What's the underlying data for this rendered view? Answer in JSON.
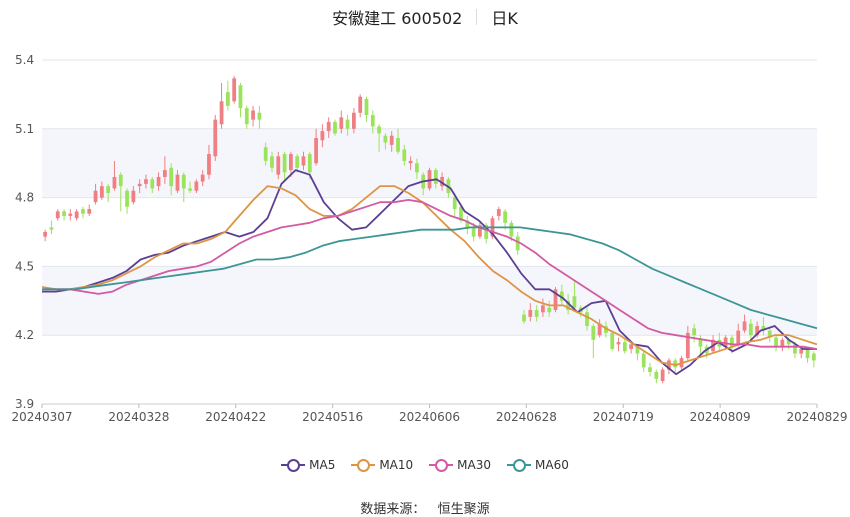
{
  "header": {
    "title": "安徽建工 600502",
    "period": "日K"
  },
  "source": {
    "label": "数据来源：",
    "name": "恒生聚源"
  },
  "colors": {
    "up": "#f07f83",
    "down": "#9be35c",
    "ma5": "#5b3f94",
    "ma10": "#dd9545",
    "ma30": "#d35aa3",
    "ma60": "#3d9696"
  },
  "chart_data": {
    "type": "candlestick",
    "y_ticks": [
      "5.4",
      "5.1",
      "4.8",
      "4.5",
      "4.2",
      "3.9"
    ],
    "ylim": [
      3.9,
      5.4
    ],
    "x_ticks": [
      "20240307",
      "20240328",
      "20240422",
      "20240516",
      "20240606",
      "20240628",
      "20240719",
      "20240809",
      "20240829"
    ],
    "grid": true,
    "legend_position": "bottom",
    "series": [
      {
        "name": "MA5",
        "key": "ma5",
        "values": [
          4.39,
          4.39,
          4.4,
          4.41,
          4.43,
          4.45,
          4.48,
          4.53,
          4.55,
          4.56,
          4.59,
          4.61,
          4.63,
          4.65,
          4.63,
          4.65,
          4.71,
          4.86,
          4.92,
          4.9,
          4.78,
          4.71,
          4.66,
          4.67,
          4.73,
          4.79,
          4.85,
          4.87,
          4.88,
          4.84,
          4.74,
          4.7,
          4.64,
          4.56,
          4.47,
          4.4,
          4.4,
          4.36,
          4.3,
          4.34,
          4.35,
          4.22,
          4.16,
          4.15,
          4.08,
          4.03,
          4.07,
          4.13,
          4.17,
          4.13,
          4.16,
          4.22,
          4.24,
          4.18,
          4.14,
          4.14
        ]
      },
      {
        "name": "MA10",
        "key": "ma10",
        "values": [
          4.41,
          4.4,
          4.4,
          4.41,
          4.42,
          4.44,
          4.47,
          4.5,
          4.54,
          4.57,
          4.6,
          4.6,
          4.62,
          4.65,
          4.72,
          4.79,
          4.85,
          4.84,
          4.81,
          4.75,
          4.72,
          4.72,
          4.75,
          4.8,
          4.85,
          4.85,
          4.82,
          4.78,
          4.72,
          4.66,
          4.61,
          4.54,
          4.48,
          4.44,
          4.39,
          4.35,
          4.33,
          4.33,
          4.3,
          4.27,
          4.23,
          4.2,
          4.16,
          4.12,
          4.08,
          4.07,
          4.09,
          4.11,
          4.13,
          4.15,
          4.17,
          4.18,
          4.2,
          4.2,
          4.18,
          4.16
        ]
      },
      {
        "name": "MA30",
        "key": "ma30",
        "values": [
          4.4,
          4.4,
          4.4,
          4.39,
          4.38,
          4.39,
          4.42,
          4.44,
          4.46,
          4.48,
          4.49,
          4.5,
          4.52,
          4.56,
          4.6,
          4.63,
          4.65,
          4.67,
          4.68,
          4.69,
          4.71,
          4.72,
          4.74,
          4.76,
          4.78,
          4.78,
          4.79,
          4.78,
          4.75,
          4.72,
          4.7,
          4.67,
          4.65,
          4.63,
          4.6,
          4.56,
          4.51,
          4.47,
          4.43,
          4.39,
          4.35,
          4.31,
          4.27,
          4.23,
          4.21,
          4.2,
          4.19,
          4.18,
          4.17,
          4.16,
          4.16,
          4.15,
          4.15,
          4.15,
          4.15,
          4.14
        ]
      },
      {
        "name": "MA60",
        "key": "ma60",
        "values": [
          4.4,
          4.4,
          4.4,
          4.41,
          4.42,
          4.43,
          4.44,
          4.45,
          4.46,
          4.47,
          4.48,
          4.49,
          4.51,
          4.53,
          4.53,
          4.54,
          4.56,
          4.59,
          4.61,
          4.62,
          4.63,
          4.64,
          4.65,
          4.66,
          4.66,
          4.66,
          4.67,
          4.67,
          4.67,
          4.67,
          4.66,
          4.65,
          4.64,
          4.62,
          4.6,
          4.57,
          4.53,
          4.49,
          4.46,
          4.43,
          4.4,
          4.37,
          4.34,
          4.31,
          4.29,
          4.27,
          4.25,
          4.23
        ]
      }
    ],
    "candles": [
      [
        4.63,
        4.65,
        4.66,
        4.61
      ],
      [
        4.67,
        4.66,
        4.7,
        4.64
      ],
      [
        4.71,
        4.74,
        4.75,
        4.7
      ],
      [
        4.74,
        4.72,
        4.75,
        4.7
      ],
      [
        4.72,
        4.73,
        4.75,
        4.7
      ],
      [
        4.71,
        4.74,
        4.75,
        4.7
      ],
      [
        4.75,
        4.73,
        4.76,
        4.71
      ],
      [
        4.73,
        4.75,
        4.77,
        4.72
      ],
      [
        4.78,
        4.83,
        4.86,
        4.77
      ],
      [
        4.8,
        4.85,
        4.87,
        4.79
      ],
      [
        4.85,
        4.82,
        4.86,
        4.78
      ],
      [
        4.84,
        4.89,
        4.96,
        4.83
      ],
      [
        4.9,
        4.85,
        4.91,
        4.74
      ],
      [
        4.83,
        4.76,
        4.84,
        4.73
      ],
      [
        4.78,
        4.83,
        4.85,
        4.77
      ],
      [
        4.85,
        4.86,
        4.88,
        4.82
      ],
      [
        4.86,
        4.88,
        4.9,
        4.84
      ],
      [
        4.88,
        4.84,
        4.89,
        4.82
      ],
      [
        4.85,
        4.89,
        4.91,
        4.83
      ],
      [
        4.89,
        4.92,
        4.98,
        4.86
      ],
      [
        4.93,
        4.85,
        4.95,
        4.81
      ],
      [
        4.83,
        4.9,
        4.92,
        4.82
      ],
      [
        4.9,
        4.84,
        4.91,
        4.78
      ],
      [
        4.84,
        4.83,
        4.87,
        4.82
      ],
      [
        4.83,
        4.87,
        4.88,
        4.82
      ],
      [
        4.87,
        4.9,
        4.92,
        4.85
      ],
      [
        4.9,
        4.99,
        5.03,
        4.88
      ],
      [
        4.98,
        5.14,
        5.16,
        4.96
      ],
      [
        5.12,
        5.22,
        5.3,
        5.1
      ],
      [
        5.26,
        5.2,
        5.31,
        5.18
      ],
      [
        5.22,
        5.32,
        5.33,
        5.21
      ],
      [
        5.29,
        5.19,
        5.3,
        5.15
      ],
      [
        5.19,
        5.12,
        5.2,
        5.1
      ],
      [
        5.14,
        5.18,
        5.2,
        5.11
      ],
      [
        5.17,
        5.14,
        5.2,
        5.1
      ],
      [
        5.02,
        4.96,
        5.04,
        4.94
      ],
      [
        4.98,
        4.93,
        5.0,
        4.91
      ],
      [
        4.9,
        4.98,
        5.0,
        4.88
      ],
      [
        4.99,
        4.91,
        5.0,
        4.87
      ],
      [
        4.92,
        4.99,
        5.0,
        4.89
      ],
      [
        4.98,
        4.93,
        4.99,
        4.91
      ],
      [
        4.94,
        4.98,
        5.0,
        4.92
      ],
      [
        4.99,
        4.91,
        5.0,
        4.88
      ],
      [
        4.95,
        5.06,
        5.1,
        4.94
      ],
      [
        5.05,
        5.09,
        5.12,
        5.02
      ],
      [
        5.09,
        5.13,
        5.15,
        5.06
      ],
      [
        5.13,
        5.08,
        5.14,
        5.07
      ],
      [
        5.1,
        5.15,
        5.18,
        5.08
      ],
      [
        5.14,
        5.1,
        5.16,
        5.07
      ],
      [
        5.1,
        5.17,
        5.19,
        5.08
      ],
      [
        5.17,
        5.24,
        5.25,
        5.15
      ],
      [
        5.23,
        5.16,
        5.24,
        5.13
      ],
      [
        5.16,
        5.11,
        5.18,
        5.08
      ],
      [
        5.11,
        5.08,
        5.12,
        5.0
      ],
      [
        5.07,
        5.04,
        5.08,
        5.01
      ],
      [
        5.03,
        5.07,
        5.09,
        5.0
      ],
      [
        5.06,
        5.0,
        5.1,
        4.99
      ],
      [
        5.01,
        4.96,
        5.03,
        4.94
      ],
      [
        4.95,
        4.96,
        4.98,
        4.92
      ],
      [
        4.95,
        4.91,
        4.97,
        4.88
      ],
      [
        4.9,
        4.84,
        4.91,
        4.81
      ],
      [
        4.84,
        4.92,
        4.93,
        4.83
      ],
      [
        4.92,
        4.86,
        4.93,
        4.84
      ],
      [
        4.85,
        4.89,
        4.91,
        4.83
      ],
      [
        4.88,
        4.82,
        4.89,
        4.8
      ],
      [
        4.8,
        4.75,
        4.82,
        4.72
      ],
      [
        4.76,
        4.7,
        4.77,
        4.69
      ],
      [
        4.7,
        4.67,
        4.72,
        4.64
      ],
      [
        4.67,
        4.63,
        4.69,
        4.61
      ],
      [
        4.63,
        4.68,
        4.7,
        4.62
      ],
      [
        4.68,
        4.62,
        4.69,
        4.6
      ],
      [
        4.63,
        4.71,
        4.72,
        4.62
      ],
      [
        4.72,
        4.75,
        4.76,
        4.7
      ],
      [
        4.74,
        4.69,
        4.75,
        4.66
      ],
      [
        4.69,
        4.63,
        4.7,
        4.61
      ],
      [
        4.63,
        4.57,
        4.65,
        4.55
      ],
      [
        4.29,
        4.26,
        4.31,
        4.25
      ],
      [
        4.28,
        4.31,
        4.34,
        4.26
      ],
      [
        4.31,
        4.28,
        4.33,
        4.26
      ],
      [
        4.3,
        4.33,
        4.36,
        4.28
      ],
      [
        4.32,
        4.3,
        4.35,
        4.28
      ],
      [
        4.31,
        4.4,
        4.41,
        4.3
      ],
      [
        4.39,
        4.35,
        4.42,
        4.33
      ],
      [
        4.35,
        4.31,
        4.38,
        4.29
      ],
      [
        4.37,
        4.32,
        4.44,
        4.3
      ],
      [
        4.32,
        4.3,
        4.33,
        4.28
      ],
      [
        4.3,
        4.24,
        4.32,
        4.22
      ],
      [
        4.24,
        4.18,
        4.25,
        4.1
      ],
      [
        4.2,
        4.25,
        4.27,
        4.19
      ],
      [
        4.24,
        4.21,
        4.26,
        4.19
      ],
      [
        4.21,
        4.14,
        4.22,
        4.13
      ],
      [
        4.16,
        4.17,
        4.19,
        4.13
      ],
      [
        4.17,
        4.13,
        4.18,
        4.12
      ],
      [
        4.14,
        4.16,
        4.17,
        4.12
      ],
      [
        4.15,
        4.12,
        4.16,
        4.09
      ],
      [
        4.12,
        4.06,
        4.13,
        4.04
      ],
      [
        4.06,
        4.04,
        4.08,
        4.02
      ],
      [
        4.04,
        4.01,
        4.05,
        3.99
      ],
      [
        4.0,
        4.05,
        4.06,
        3.99
      ],
      [
        4.05,
        4.09,
        4.1,
        4.03
      ],
      [
        4.09,
        4.06,
        4.1,
        4.04
      ],
      [
        4.06,
        4.1,
        4.11,
        4.05
      ],
      [
        4.1,
        4.21,
        4.24,
        4.09
      ],
      [
        4.23,
        4.2,
        4.25,
        4.17
      ],
      [
        4.18,
        4.15,
        4.2,
        4.12
      ],
      [
        4.15,
        4.12,
        4.16,
        4.1
      ],
      [
        4.13,
        4.18,
        4.2,
        4.12
      ],
      [
        4.18,
        4.15,
        4.21,
        4.13
      ],
      [
        4.15,
        4.19,
        4.2,
        4.14
      ],
      [
        4.19,
        4.15,
        4.2,
        4.12
      ],
      [
        4.16,
        4.22,
        4.25,
        4.15
      ],
      [
        4.22,
        4.26,
        4.29,
        4.21
      ],
      [
        4.25,
        4.2,
        4.27,
        4.18
      ],
      [
        4.2,
        4.24,
        4.26,
        4.19
      ],
      [
        4.24,
        4.22,
        4.28,
        4.2
      ],
      [
        4.22,
        4.19,
        4.23,
        4.17
      ],
      [
        4.19,
        4.15,
        4.2,
        4.13
      ],
      [
        4.15,
        4.18,
        4.19,
        4.13
      ],
      [
        4.18,
        4.16,
        4.19,
        4.14
      ],
      [
        4.16,
        4.12,
        4.17,
        4.1
      ],
      [
        4.12,
        4.14,
        4.15,
        4.1
      ],
      [
        4.14,
        4.1,
        4.15,
        4.08
      ],
      [
        4.12,
        4.09,
        4.13,
        4.06
      ]
    ]
  }
}
